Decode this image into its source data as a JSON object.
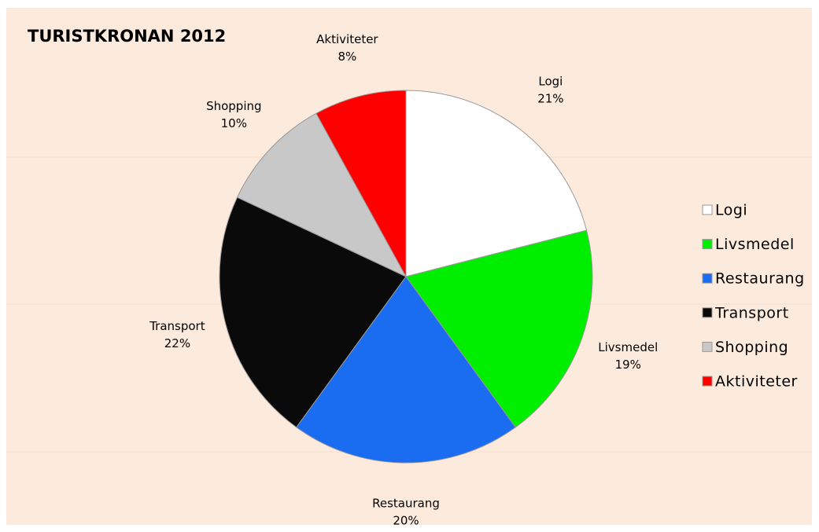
{
  "chart_data": {
    "type": "pie",
    "title": "TURISTKRONAN 2012",
    "categories": [
      "Logi",
      "Livsmedel",
      "Restaurang",
      "Transport",
      "Shopping",
      "Aktiviteter"
    ],
    "values": [
      21,
      19,
      20,
      22,
      10,
      8
    ],
    "value_labels": [
      "21%",
      "19%",
      "20%",
      "22%",
      "10%",
      "8%"
    ],
    "colors": [
      "#ffffff",
      "#00ee00",
      "#1a6cf0",
      "#0a0a0a",
      "#c8c8c8",
      "#ff0000"
    ],
    "legend": "right"
  }
}
